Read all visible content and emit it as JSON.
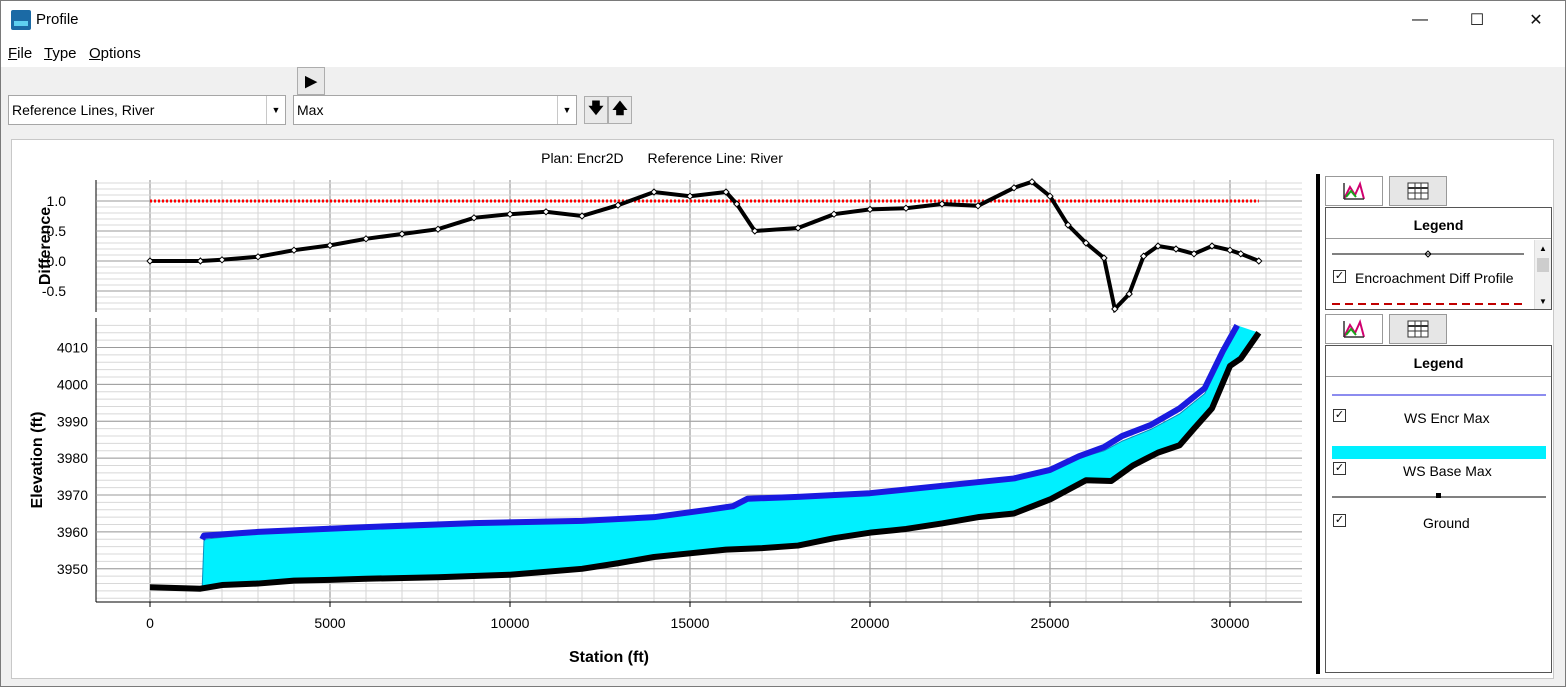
{
  "window": {
    "title": "Profile",
    "minimize": "—",
    "maximize": "☐",
    "close": "✕"
  },
  "menu": [
    "File",
    "Type",
    "Options"
  ],
  "toolbar": {
    "reference_select": "Reference Lines, River",
    "profile_select": "Max",
    "play_icon": "▶",
    "down_icon": "🡇",
    "up_icon": "🡅"
  },
  "plot": {
    "plan_label": "Plan: Encr2D",
    "ref_label": "Reference Line: River"
  },
  "legend_top": {
    "title": "Legend",
    "items": [
      {
        "label": "Encroachment Diff Profile",
        "checked": true,
        "check": "✓"
      }
    ]
  },
  "legend_bottom": {
    "title": "Legend",
    "items": [
      {
        "label": "WS Encr Max",
        "checked": true,
        "check": "✓"
      },
      {
        "label": "WS Base Max",
        "checked": true,
        "check": "✓"
      },
      {
        "label": "Ground",
        "checked": true,
        "check": "✓"
      }
    ]
  },
  "colors": {
    "ws_encr": "#1a1adf",
    "ws_base": "#00f0ff",
    "ground": "#000000",
    "reference": "#ff0000"
  },
  "chart_data": [
    {
      "type": "line",
      "ylabel": "Difference",
      "xlim": [
        -1500,
        32000
      ],
      "ylim": [
        -0.85,
        1.35
      ],
      "yticks": [
        "1.0",
        "0.5",
        "0.0",
        "-0.5"
      ],
      "series": [
        {
          "name": "Encroachment Diff Profile",
          "x": [
            0,
            1400,
            2000,
            3000,
            4000,
            5000,
            6000,
            7000,
            8000,
            9000,
            10000,
            11000,
            12000,
            13000,
            14000,
            15000,
            16000,
            16300,
            16800,
            18000,
            19000,
            20000,
            21000,
            22000,
            23000,
            24000,
            24500,
            25000,
            25500,
            26000,
            26500,
            26800,
            27200,
            27600,
            28000,
            28500,
            29000,
            29500,
            30000,
            30300,
            30800
          ],
          "y": [
            0,
            0,
            0.02,
            0.07,
            0.18,
            0.26,
            0.37,
            0.45,
            0.53,
            0.72,
            0.78,
            0.82,
            0.75,
            0.93,
            1.15,
            1.08,
            1.15,
            0.95,
            0.5,
            0.55,
            0.78,
            0.86,
            0.88,
            0.95,
            0.92,
            1.22,
            1.32,
            1.08,
            0.6,
            0.3,
            0.05,
            -0.8,
            -0.55,
            0.08,
            0.25,
            0.2,
            0.12,
            0.25,
            0.18,
            0.12,
            0
          ]
        },
        {
          "name": "reference",
          "x": [
            0,
            30800
          ],
          "y": [
            1.0,
            1.0
          ]
        }
      ]
    },
    {
      "type": "area",
      "xlabel": "Station (ft)",
      "ylabel": "Elevation (ft)",
      "xlim": [
        -1500,
        32000
      ],
      "ylim": [
        3941,
        4018
      ],
      "xticks": [
        "0",
        "5000",
        "10000",
        "15000",
        "20000",
        "25000",
        "30000"
      ],
      "yticks": [
        "4010",
        "4000",
        "3990",
        "3980",
        "3970",
        "3960",
        "3950"
      ],
      "series": [
        {
          "name": "WS Encr Max",
          "x": [
            1450,
            1500,
            3000,
            6000,
            9000,
            12000,
            14000,
            15500,
            16200,
            16600,
            18000,
            20000,
            22000,
            24000,
            25000,
            25800,
            26500,
            27000,
            27800,
            28600,
            29300,
            29800,
            30200
          ],
          "y": [
            3958,
            3959,
            3960,
            3961.3,
            3962.4,
            3963,
            3964,
            3966,
            3967,
            3969,
            3969.5,
            3970.5,
            3972.5,
            3974.5,
            3976.8,
            3980.5,
            3983,
            3986,
            3989,
            3993.5,
            3999,
            4009,
            4016
          ]
        },
        {
          "name": "WS Base Max",
          "x": [
            0,
            1400,
            1450,
            1500,
            3000,
            6000,
            9000,
            12000,
            14000,
            15500,
            16200,
            16600,
            18000,
            20000,
            22000,
            24000,
            25000,
            25800,
            26500,
            27000,
            27800,
            28600,
            29300,
            29800,
            30200
          ],
          "y": [
            3945,
            3945,
            3945,
            3958,
            3959.6,
            3961,
            3962,
            3962.7,
            3963.7,
            3965.8,
            3966.8,
            3968.8,
            3969.3,
            3970.2,
            3972.2,
            3974.2,
            3976.5,
            3980,
            3982,
            3984.6,
            3987.8,
            3992,
            3997.5,
            4008,
            4016
          ]
        },
        {
          "name": "Ground",
          "x": [
            0,
            1400,
            2000,
            3000,
            4000,
            5000,
            6000,
            8000,
            10000,
            12000,
            13000,
            14000,
            15000,
            16000,
            17000,
            18000,
            19000,
            20000,
            21000,
            22000,
            23000,
            24000,
            25000,
            26000,
            26700,
            27300,
            28000,
            28600,
            29000,
            29500,
            30000,
            30300,
            30800
          ],
          "y": [
            3945,
            3944.6,
            3945.6,
            3946,
            3946.8,
            3947,
            3947.3,
            3947.7,
            3948.4,
            3950,
            3951.5,
            3953.2,
            3954.2,
            3955.2,
            3955.6,
            3956.3,
            3958.3,
            3959.8,
            3960.8,
            3962.3,
            3964,
            3965,
            3968.8,
            3974,
            3973.8,
            3978,
            3981.5,
            3983.5,
            3988,
            3993.5,
            4005,
            4007,
            4014
          ]
        }
      ]
    }
  ]
}
